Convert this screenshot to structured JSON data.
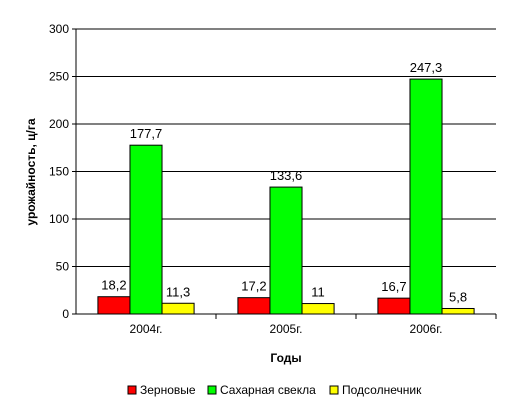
{
  "chart_data": {
    "type": "bar",
    "categories": [
      "2004г.",
      "2005г.",
      "2006г."
    ],
    "series": [
      {
        "name": "Зерновые",
        "color": "#ff0000",
        "values": [
          18.2,
          17.2,
          16.7
        ],
        "labels": [
          "18,2",
          "17,2",
          "16,7"
        ]
      },
      {
        "name": "Сахарная свекла",
        "color": "#00ff00",
        "values": [
          177.7,
          133.6,
          247.3
        ],
        "labels": [
          "177,7",
          "133,6",
          "247,3"
        ]
      },
      {
        "name": "Подсолнечник",
        "color": "#ffff00",
        "values": [
          11.3,
          11,
          5.8
        ],
        "labels": [
          "11,3",
          "11",
          "5,8"
        ]
      }
    ],
    "xlabel": "Годы",
    "ylabel": "урожайность, ц/га",
    "ylim": [
      0,
      300
    ],
    "yticks": [
      0,
      50,
      100,
      150,
      200,
      250,
      300
    ],
    "grid": true,
    "legend": "bottom"
  }
}
